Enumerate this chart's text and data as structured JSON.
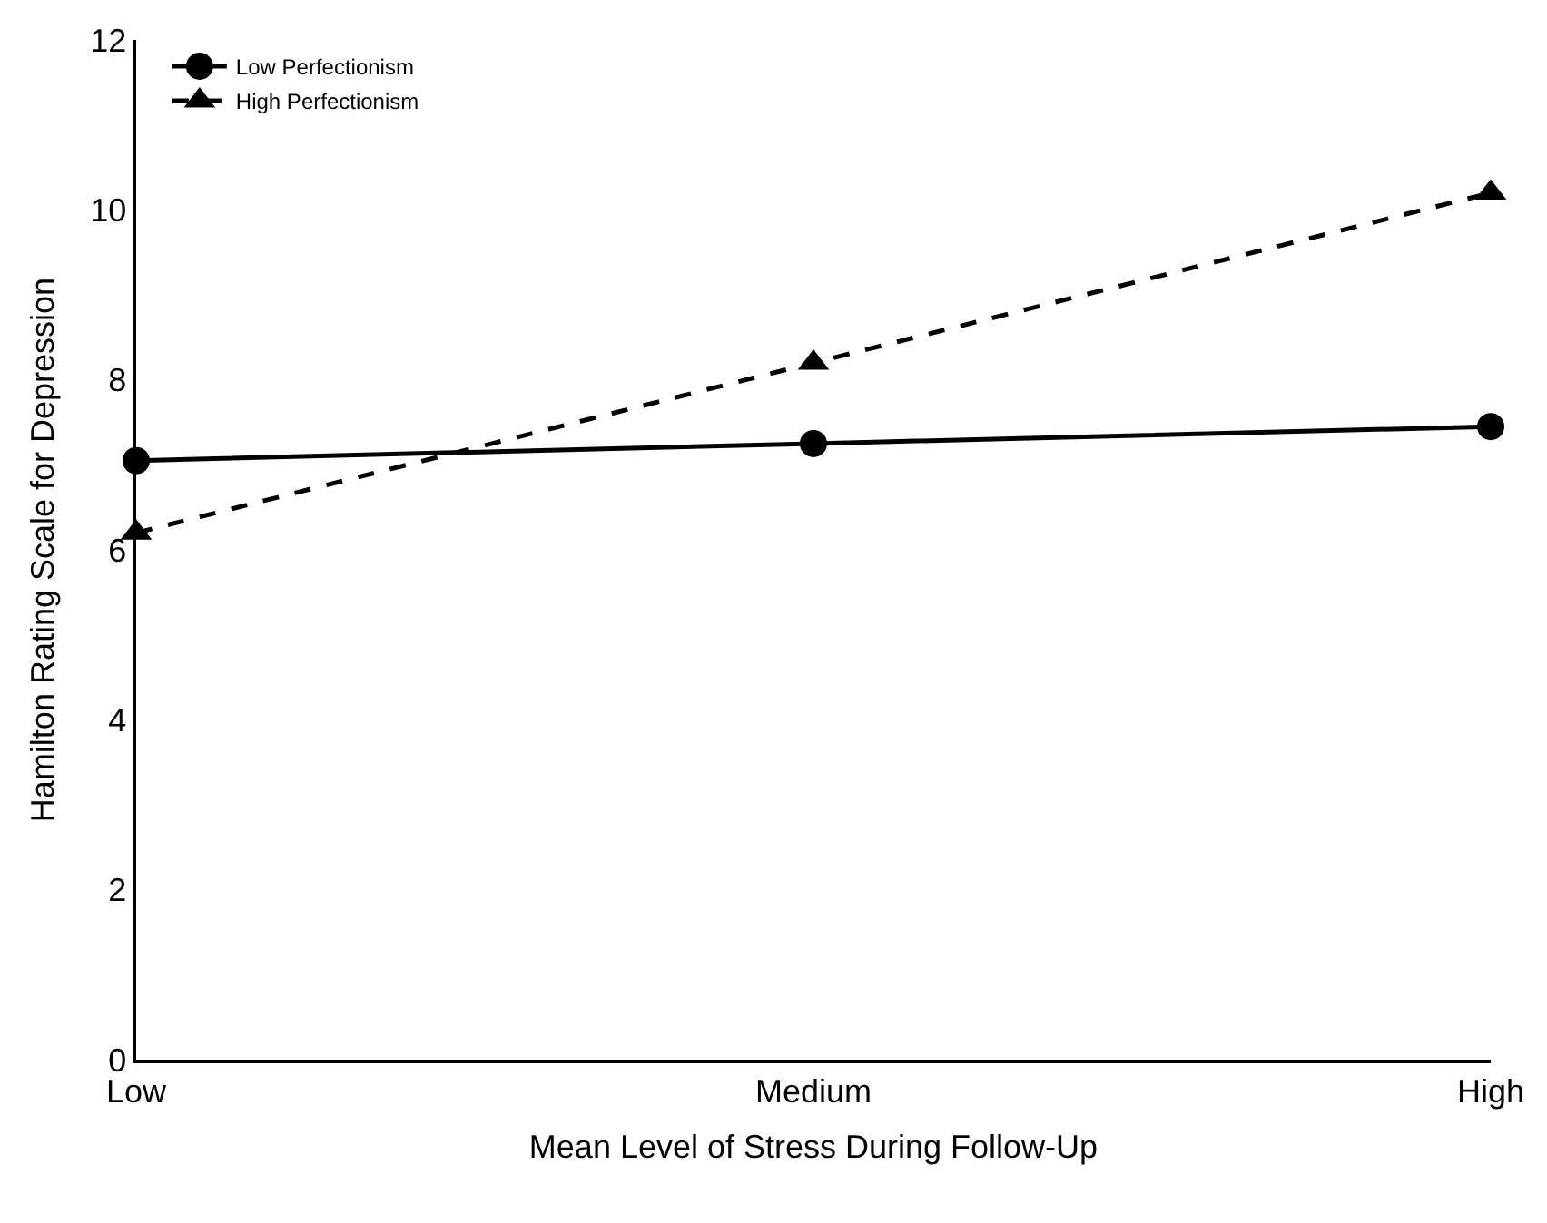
{
  "chart_data": {
    "type": "line",
    "xlabel": "Mean Level of Stress During Follow-Up",
    "ylabel": "Hamilton Rating Scale for Depression",
    "categories": [
      "Low",
      "Medium",
      "High"
    ],
    "series": [
      {
        "name": "Low Perfectionism",
        "color": "#000000",
        "values": [
          7.05,
          7.25,
          7.45
        ],
        "marker": "circle",
        "line_style": "solid"
      },
      {
        "name": "High Perfectionism",
        "color": "#000000",
        "values": [
          6.2,
          8.2,
          10.2
        ],
        "marker": "triangle",
        "line_style": "dashed"
      }
    ],
    "ylim": [
      0,
      12
    ],
    "yticks": [
      0,
      2,
      4,
      6,
      8,
      10,
      12
    ],
    "legend": "top left"
  }
}
